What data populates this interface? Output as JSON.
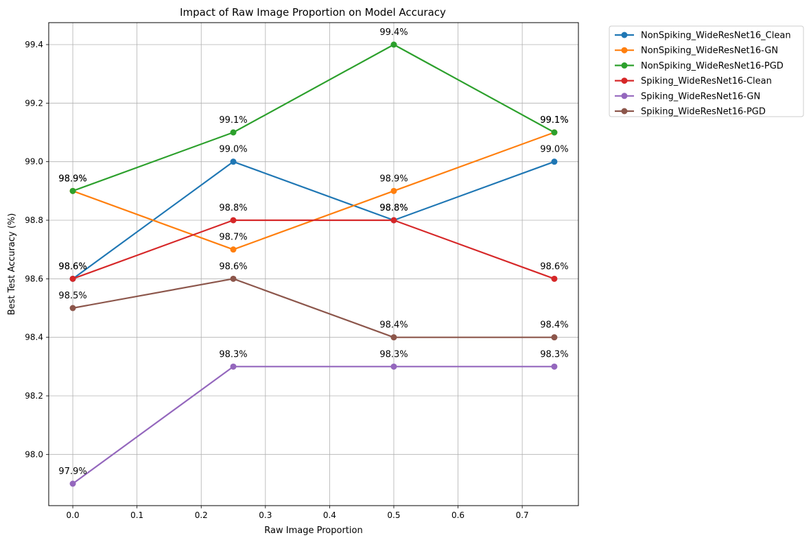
{
  "chart_data": {
    "type": "line",
    "title": "Impact of Raw Image Proportion on Model Accuracy",
    "xlabel": "Raw Image Proportion",
    "ylabel": "Best Test Accuracy (%)",
    "x": [
      0.0,
      0.25,
      0.5,
      0.75
    ],
    "xlim": [
      -0.0375,
      0.7875
    ],
    "ylim": [
      97.825,
      99.475
    ],
    "xticks": [
      0.0,
      0.1,
      0.2,
      0.3,
      0.4,
      0.5,
      0.6,
      0.7
    ],
    "xtick_labels": [
      "0.0",
      "0.1",
      "0.2",
      "0.3",
      "0.4",
      "0.5",
      "0.6",
      "0.7"
    ],
    "yticks": [
      98.0,
      98.2,
      98.4,
      98.6,
      98.8,
      99.0,
      99.2,
      99.4
    ],
    "ytick_labels": [
      "98.0",
      "98.2",
      "98.4",
      "98.6",
      "98.8",
      "99.0",
      "99.2",
      "99.4"
    ],
    "grid": true,
    "legend_position": "outside-top-right",
    "series": [
      {
        "name": "NonSpiking_WideResNet16_Clean",
        "color": "#1f77b4",
        "values": [
          98.6,
          99.0,
          98.8,
          99.0
        ],
        "labels": [
          "98.6%",
          "99.0%",
          "98.8%",
          "99.0%"
        ]
      },
      {
        "name": "NonSpiking_WideResNet16-GN",
        "color": "#ff7f0e",
        "values": [
          98.9,
          98.7,
          98.9,
          99.1
        ],
        "labels": [
          "98.9%",
          "98.7%",
          "98.9%",
          "99.1%"
        ]
      },
      {
        "name": "NonSpiking_WideResNet16-PGD",
        "color": "#2ca02c",
        "values": [
          98.9,
          99.1,
          99.4,
          99.1
        ],
        "labels": [
          "98.9%",
          "99.1%",
          "99.4%",
          "99.1%"
        ]
      },
      {
        "name": "Spiking_WideResNet16-Clean",
        "color": "#d62728",
        "values": [
          98.6,
          98.8,
          98.8,
          98.6
        ],
        "labels": [
          "98.6%",
          "98.8%",
          "98.8%",
          "98.6%"
        ]
      },
      {
        "name": "Spiking_WideResNet16-GN",
        "color": "#9467bd",
        "values": [
          97.9,
          98.3,
          98.3,
          98.3
        ],
        "labels": [
          "97.9%",
          "98.3%",
          "98.3%",
          "98.3%"
        ]
      },
      {
        "name": "Spiking_WideResNet16-PGD",
        "color": "#8c564b",
        "values": [
          98.5,
          98.6,
          98.4,
          98.4
        ],
        "labels": [
          "98.5%",
          "98.6%",
          "98.4%",
          "98.4%"
        ]
      }
    ]
  }
}
